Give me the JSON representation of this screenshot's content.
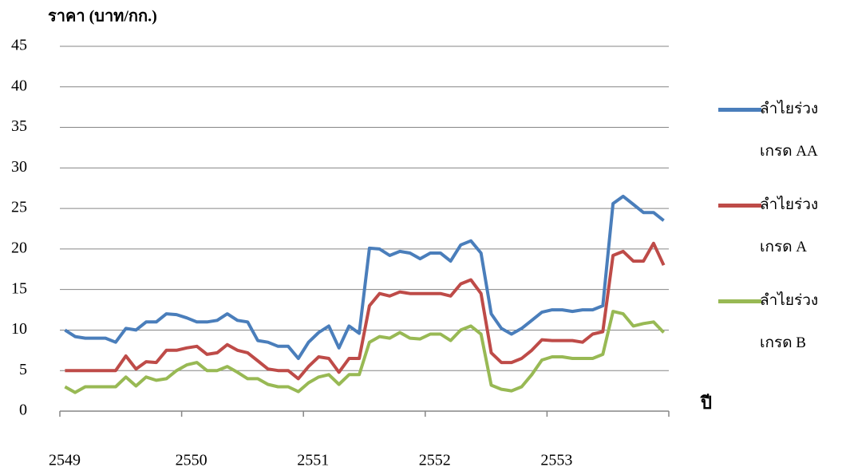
{
  "chart_data": {
    "type": "line",
    "y_label": "ราคา (บาท/กก.)",
    "x_label": "ปี",
    "categories": [
      "2549",
      null,
      null,
      null,
      null,
      null,
      null,
      null,
      null,
      null,
      null,
      null,
      "2550",
      null,
      null,
      null,
      null,
      null,
      null,
      null,
      null,
      null,
      null,
      null,
      "2551",
      null,
      null,
      null,
      null,
      null,
      null,
      null,
      null,
      null,
      null,
      null,
      "2552",
      null,
      null,
      null,
      null,
      null,
      null,
      null,
      null,
      null,
      null,
      null,
      "2553",
      null,
      null,
      null,
      null,
      null,
      null,
      null,
      null,
      null,
      null,
      null
    ],
    "series": [
      {
        "name": "ลำไยร่วง เกรด AA",
        "color": "#4a7ebb",
        "values": [
          10,
          9.2,
          9,
          9,
          9,
          8.5,
          10.2,
          10,
          11,
          11,
          12,
          11.9,
          11.5,
          11,
          11,
          11.2,
          12,
          11.2,
          11,
          8.7,
          8.5,
          8,
          8,
          6.5,
          8.5,
          9.7,
          10.5,
          7.8,
          10.5,
          9.6,
          20.1,
          20,
          19.2,
          19.7,
          19.5,
          18.8,
          19.5,
          19.5,
          18.5,
          20.5,
          21,
          19.5,
          12,
          10.2,
          9.5,
          10.2,
          11.2,
          12.2,
          12.5,
          12.5,
          12.3,
          12.5,
          12.5,
          13,
          25.6,
          26.5,
          25.5,
          24.5,
          24.5,
          23.5
        ]
      },
      {
        "name": "ลำไยร่วง เกรด A",
        "color": "#be4b48",
        "values": [
          5,
          5,
          5,
          5,
          5,
          5,
          6.8,
          5.2,
          6.1,
          6,
          7.5,
          7.5,
          7.8,
          8,
          7,
          7.2,
          8.2,
          7.5,
          7.2,
          6.2,
          5.2,
          5,
          5,
          4,
          5.5,
          6.7,
          6.5,
          4.8,
          6.5,
          6.5,
          13,
          14.5,
          14.2,
          14.7,
          14.5,
          14.5,
          14.5,
          14.5,
          14.2,
          15.7,
          16.2,
          14.5,
          7.2,
          6,
          6,
          6.5,
          7.5,
          8.8,
          8.7,
          8.7,
          8.7,
          8.5,
          9.5,
          9.8,
          19.2,
          19.7,
          18.5,
          18.5,
          20.7,
          18
        ]
      },
      {
        "name": "ลำไยร่วง เกรด B",
        "color": "#98b954",
        "values": [
          3,
          2.3,
          3,
          3,
          3,
          3,
          4.2,
          3.1,
          4.2,
          3.8,
          4,
          5,
          5.7,
          6,
          5,
          5,
          5.5,
          4.8,
          4,
          4,
          3.3,
          3,
          3,
          2.4,
          3.5,
          4.2,
          4.5,
          3.3,
          4.5,
          4.5,
          8.5,
          9.2,
          9,
          9.7,
          9,
          8.9,
          9.5,
          9.5,
          8.7,
          10,
          10.5,
          9.5,
          3.2,
          2.7,
          2.5,
          3,
          4.5,
          6.3,
          6.7,
          6.7,
          6.5,
          6.5,
          6.5,
          7,
          12.3,
          12,
          10.5,
          10.8,
          11,
          9.7
        ]
      }
    ],
    "ylim": [
      0,
      45
    ],
    "yticks": [
      0,
      5,
      10,
      15,
      20,
      25,
      30,
      35,
      40,
      45
    ],
    "grid": true,
    "legend": "right"
  }
}
